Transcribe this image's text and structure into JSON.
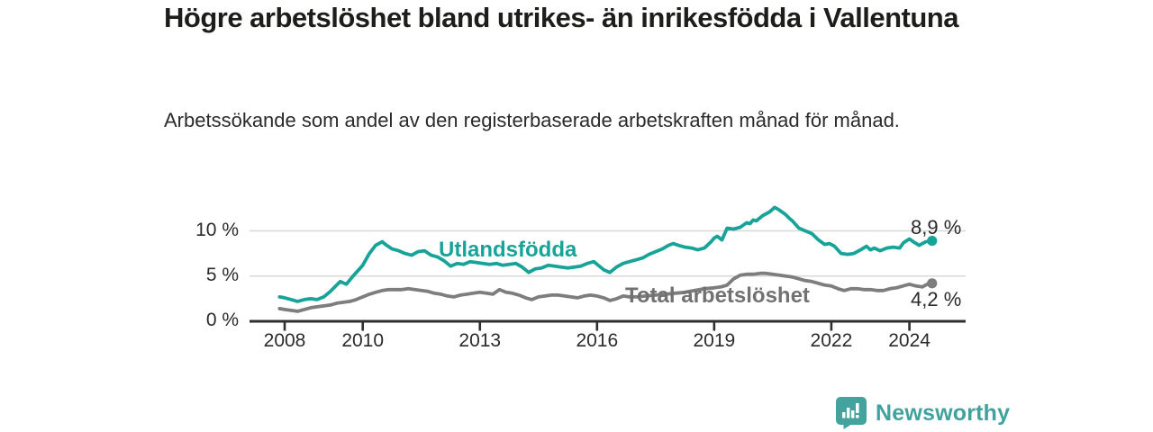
{
  "header": {
    "title": "Högre arbetslöshet bland utrikes- än inrikesfödda i Vallentuna",
    "subtitle": "Arbetssökande som andel av den registerbaserade arbetskraften månad för månad."
  },
  "footer": {
    "brand": "Newsworthy",
    "logo_icon": "bar-chart-speech-bubble",
    "brand_color": "#40a29c"
  },
  "chart_data": {
    "type": "line",
    "title": "Högre arbetslöshet bland utrikes- än inrikesfödda i Vallentuna",
    "subtitle": "Arbetssökande som andel av den registerbaserade arbetskraften månad för månad.",
    "unit": "%",
    "grid": "horizontal-only",
    "legend_position": "inline-labels-on-lines",
    "x_axis": {
      "range": [
        2007.8,
        2025.4
      ],
      "ticks": [
        2008,
        2010,
        2013,
        2016,
        2019,
        2022,
        2024
      ]
    },
    "y_axis": {
      "range": [
        0,
        13
      ],
      "ticks": [
        0,
        5,
        10
      ],
      "tick_labels": [
        "0 %",
        "5 %",
        "10 %"
      ]
    },
    "colors": {
      "axis": "#2e2e2c",
      "gridline": "#d8d8d6",
      "series0": "#18a399",
      "series1": "#7d7d7d"
    },
    "series": [
      {
        "name": "Utlandsfödda",
        "color": "#18a399",
        "end_label": "8,9 %",
        "end_value": 8.9,
        "points": [
          [
            2007.87,
            2.7
          ],
          [
            2008.0,
            2.6
          ],
          [
            2008.17,
            2.4
          ],
          [
            2008.33,
            2.2
          ],
          [
            2008.5,
            2.4
          ],
          [
            2008.67,
            2.5
          ],
          [
            2008.83,
            2.4
          ],
          [
            2009.0,
            2.7
          ],
          [
            2009.17,
            3.3
          ],
          [
            2009.33,
            4.0
          ],
          [
            2009.42,
            4.4
          ],
          [
            2009.58,
            4.1
          ],
          [
            2009.75,
            5.0
          ],
          [
            2009.92,
            5.8
          ],
          [
            2010.0,
            6.2
          ],
          [
            2010.17,
            7.5
          ],
          [
            2010.33,
            8.4
          ],
          [
            2010.5,
            8.8
          ],
          [
            2010.58,
            8.5
          ],
          [
            2010.75,
            8.0
          ],
          [
            2010.92,
            7.8
          ],
          [
            2011.08,
            7.5
          ],
          [
            2011.25,
            7.3
          ],
          [
            2011.42,
            7.7
          ],
          [
            2011.58,
            7.8
          ],
          [
            2011.75,
            7.3
          ],
          [
            2011.92,
            7.1
          ],
          [
            2012.08,
            6.7
          ],
          [
            2012.25,
            6.1
          ],
          [
            2012.42,
            6.4
          ],
          [
            2012.58,
            6.3
          ],
          [
            2012.75,
            6.6
          ],
          [
            2012.92,
            6.5
          ],
          [
            2013.08,
            6.4
          ],
          [
            2013.25,
            6.3
          ],
          [
            2013.42,
            6.4
          ],
          [
            2013.58,
            6.2
          ],
          [
            2013.75,
            6.3
          ],
          [
            2013.92,
            6.4
          ],
          [
            2014.08,
            6.0
          ],
          [
            2014.25,
            5.4
          ],
          [
            2014.42,
            5.8
          ],
          [
            2014.58,
            5.9
          ],
          [
            2014.75,
            6.2
          ],
          [
            2014.92,
            6.1
          ],
          [
            2015.08,
            6.0
          ],
          [
            2015.25,
            5.9
          ],
          [
            2015.42,
            6.0
          ],
          [
            2015.58,
            6.1
          ],
          [
            2015.75,
            6.4
          ],
          [
            2015.92,
            6.6
          ],
          [
            2016.0,
            6.3
          ],
          [
            2016.17,
            5.7
          ],
          [
            2016.33,
            5.4
          ],
          [
            2016.5,
            6.0
          ],
          [
            2016.67,
            6.4
          ],
          [
            2016.83,
            6.6
          ],
          [
            2017.0,
            6.8
          ],
          [
            2017.17,
            7.0
          ],
          [
            2017.33,
            7.4
          ],
          [
            2017.5,
            7.7
          ],
          [
            2017.67,
            8.0
          ],
          [
            2017.83,
            8.4
          ],
          [
            2017.95,
            8.6
          ],
          [
            2018.08,
            8.4
          ],
          [
            2018.25,
            8.2
          ],
          [
            2018.42,
            8.1
          ],
          [
            2018.58,
            7.9
          ],
          [
            2018.75,
            8.1
          ],
          [
            2018.92,
            8.8
          ],
          [
            2019.0,
            9.2
          ],
          [
            2019.08,
            9.4
          ],
          [
            2019.2,
            9.0
          ],
          [
            2019.33,
            10.3
          ],
          [
            2019.5,
            10.2
          ],
          [
            2019.67,
            10.4
          ],
          [
            2019.83,
            10.9
          ],
          [
            2019.92,
            10.8
          ],
          [
            2020.0,
            11.2
          ],
          [
            2020.08,
            11.1
          ],
          [
            2020.25,
            11.7
          ],
          [
            2020.42,
            12.1
          ],
          [
            2020.55,
            12.6
          ],
          [
            2020.67,
            12.3
          ],
          [
            2020.83,
            11.8
          ],
          [
            2020.92,
            11.4
          ],
          [
            2021.0,
            11.1
          ],
          [
            2021.17,
            10.3
          ],
          [
            2021.33,
            10.0
          ],
          [
            2021.5,
            9.7
          ],
          [
            2021.67,
            9.0
          ],
          [
            2021.83,
            8.5
          ],
          [
            2021.95,
            8.6
          ],
          [
            2022.08,
            8.3
          ],
          [
            2022.25,
            7.5
          ],
          [
            2022.42,
            7.4
          ],
          [
            2022.58,
            7.5
          ],
          [
            2022.75,
            7.9
          ],
          [
            2022.9,
            8.3
          ],
          [
            2023.0,
            7.9
          ],
          [
            2023.1,
            8.1
          ],
          [
            2023.25,
            7.8
          ],
          [
            2023.42,
            8.1
          ],
          [
            2023.58,
            8.2
          ],
          [
            2023.75,
            8.1
          ],
          [
            2023.85,
            8.7
          ],
          [
            2024.0,
            9.1
          ],
          [
            2024.1,
            8.8
          ],
          [
            2024.25,
            8.4
          ],
          [
            2024.42,
            8.8
          ],
          [
            2024.58,
            8.9
          ]
        ]
      },
      {
        "name": "Total arbetslöshet",
        "color": "#7d7d7d",
        "end_label": "4,2 %",
        "end_value": 4.2,
        "points": [
          [
            2007.87,
            1.4
          ],
          [
            2008.0,
            1.3
          ],
          [
            2008.17,
            1.2
          ],
          [
            2008.33,
            1.1
          ],
          [
            2008.5,
            1.3
          ],
          [
            2008.67,
            1.5
          ],
          [
            2008.83,
            1.6
          ],
          [
            2009.0,
            1.7
          ],
          [
            2009.17,
            1.8
          ],
          [
            2009.33,
            2.0
          ],
          [
            2009.5,
            2.1
          ],
          [
            2009.67,
            2.2
          ],
          [
            2009.83,
            2.4
          ],
          [
            2010.0,
            2.7
          ],
          [
            2010.17,
            3.0
          ],
          [
            2010.33,
            3.2
          ],
          [
            2010.5,
            3.4
          ],
          [
            2010.67,
            3.5
          ],
          [
            2010.83,
            3.5
          ],
          [
            2011.0,
            3.5
          ],
          [
            2011.17,
            3.6
          ],
          [
            2011.33,
            3.5
          ],
          [
            2011.5,
            3.4
          ],
          [
            2011.67,
            3.3
          ],
          [
            2011.83,
            3.1
          ],
          [
            2012.0,
            3.0
          ],
          [
            2012.17,
            2.8
          ],
          [
            2012.33,
            2.7
          ],
          [
            2012.5,
            2.9
          ],
          [
            2012.67,
            3.0
          ],
          [
            2012.83,
            3.1
          ],
          [
            2013.0,
            3.2
          ],
          [
            2013.17,
            3.1
          ],
          [
            2013.33,
            3.0
          ],
          [
            2013.5,
            3.5
          ],
          [
            2013.67,
            3.2
          ],
          [
            2013.83,
            3.1
          ],
          [
            2014.0,
            2.9
          ],
          [
            2014.17,
            2.6
          ],
          [
            2014.33,
            2.4
          ],
          [
            2014.5,
            2.7
          ],
          [
            2014.67,
            2.8
          ],
          [
            2014.83,
            2.9
          ],
          [
            2015.0,
            2.9
          ],
          [
            2015.17,
            2.8
          ],
          [
            2015.33,
            2.7
          ],
          [
            2015.5,
            2.6
          ],
          [
            2015.67,
            2.8
          ],
          [
            2015.83,
            2.9
          ],
          [
            2016.0,
            2.8
          ],
          [
            2016.17,
            2.6
          ],
          [
            2016.33,
            2.3
          ],
          [
            2016.5,
            2.5
          ],
          [
            2016.67,
            2.8
          ],
          [
            2016.83,
            2.7
          ],
          [
            2017.0,
            2.7
          ],
          [
            2017.25,
            2.8
          ],
          [
            2017.5,
            2.9
          ],
          [
            2017.75,
            3.0
          ],
          [
            2018.0,
            3.1
          ],
          [
            2018.25,
            3.2
          ],
          [
            2018.5,
            3.4
          ],
          [
            2018.75,
            3.6
          ],
          [
            2019.0,
            3.7
          ],
          [
            2019.17,
            3.8
          ],
          [
            2019.33,
            4.0
          ],
          [
            2019.5,
            4.7
          ],
          [
            2019.67,
            5.1
          ],
          [
            2019.83,
            5.2
          ],
          [
            2020.0,
            5.2
          ],
          [
            2020.17,
            5.3
          ],
          [
            2020.33,
            5.3
          ],
          [
            2020.5,
            5.2
          ],
          [
            2020.67,
            5.1
          ],
          [
            2020.83,
            5.0
          ],
          [
            2021.0,
            4.9
          ],
          [
            2021.17,
            4.7
          ],
          [
            2021.33,
            4.5
          ],
          [
            2021.5,
            4.4
          ],
          [
            2021.67,
            4.2
          ],
          [
            2021.83,
            4.0
          ],
          [
            2022.0,
            3.9
          ],
          [
            2022.17,
            3.6
          ],
          [
            2022.33,
            3.4
          ],
          [
            2022.5,
            3.6
          ],
          [
            2022.67,
            3.6
          ],
          [
            2022.83,
            3.5
          ],
          [
            2023.0,
            3.5
          ],
          [
            2023.17,
            3.4
          ],
          [
            2023.33,
            3.4
          ],
          [
            2023.5,
            3.6
          ],
          [
            2023.67,
            3.7
          ],
          [
            2023.83,
            3.9
          ],
          [
            2024.0,
            4.1
          ],
          [
            2024.17,
            3.9
          ],
          [
            2024.33,
            3.8
          ],
          [
            2024.5,
            4.2
          ],
          [
            2024.58,
            4.2
          ]
        ]
      }
    ]
  }
}
